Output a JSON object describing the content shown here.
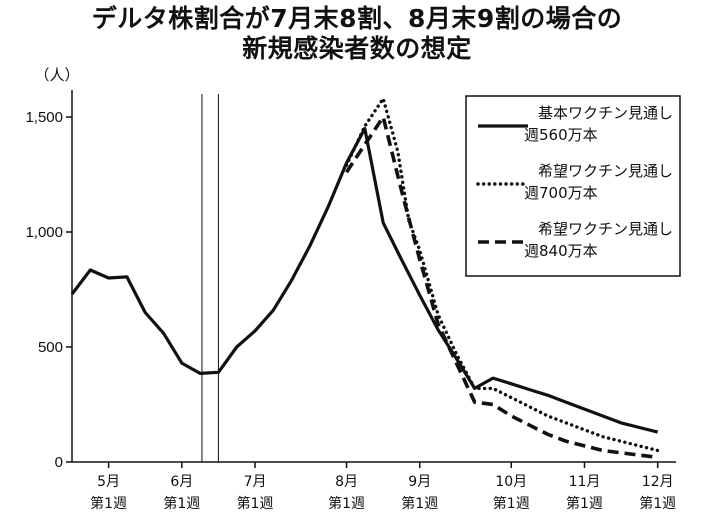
{
  "title": {
    "line1": "デルタ株割合が7月末8割、8月末9割の場合の",
    "line2": "新規感染者数の想定"
  },
  "chart_data": {
    "type": "line",
    "ylabel": "（人）",
    "ylim": [
      0,
      1600
    ],
    "yticks": [
      0,
      500,
      1000,
      1500
    ],
    "ytick_labels": [
      "0",
      "500",
      "1,000",
      "1,500"
    ],
    "xlim": [
      -2,
      31
    ],
    "xticks": [
      {
        "x": 0,
        "label": [
          "5月",
          "第1週"
        ]
      },
      {
        "x": 4,
        "label": [
          "6月",
          "第1週"
        ]
      },
      {
        "x": 8,
        "label": [
          "7月",
          "第1週"
        ]
      },
      {
        "x": 13,
        "label": [
          "8月",
          "第1週"
        ]
      },
      {
        "x": 17,
        "label": [
          "9月",
          "第1週"
        ]
      },
      {
        "x": 22,
        "label": [
          "10月",
          "第1週"
        ]
      },
      {
        "x": 26,
        "label": [
          "11月",
          "第1週"
        ]
      },
      {
        "x": 30,
        "label": [
          "12月",
          "第1週"
        ]
      }
    ],
    "vlines": [
      5.1,
      6
    ],
    "series": [
      {
        "name": "基本ワクチン見通し 週560万本",
        "style": "solid",
        "x": [
          -2,
          -1,
          0,
          1,
          2,
          3,
          4,
          5,
          6,
          7,
          8,
          9,
          10,
          11,
          12,
          13,
          14,
          15,
          16,
          17,
          18,
          19,
          20,
          21,
          22,
          23,
          24,
          25,
          26,
          27,
          28,
          29,
          30
        ],
        "y": [
          730,
          835,
          800,
          805,
          650,
          560,
          430,
          385,
          390,
          500,
          570,
          660,
          790,
          940,
          1110,
          1300,
          1450,
          1040,
          880,
          725,
          575,
          450,
          320,
          365,
          340,
          315,
          290,
          260,
          230,
          200,
          170,
          150,
          130
        ]
      },
      {
        "name": "希望ワクチン見通し 週700万本",
        "style": "dotted",
        "x": [
          13,
          14,
          15,
          15.8,
          16.4,
          17,
          18,
          19,
          20,
          21,
          22,
          23,
          24,
          25,
          26,
          27,
          28,
          29,
          30
        ],
        "y": [
          1290,
          1460,
          1580,
          1350,
          1050,
          920,
          640,
          470,
          320,
          320,
          280,
          240,
          200,
          170,
          140,
          110,
          90,
          70,
          50
        ]
      },
      {
        "name": "希望ワクチン見通し 週840万本",
        "style": "dashed",
        "x": [
          13,
          14,
          15,
          16,
          16.6,
          17,
          18,
          19,
          20,
          21,
          22,
          23,
          24,
          25,
          26,
          27,
          28,
          29,
          30
        ],
        "y": [
          1260,
          1380,
          1500,
          1180,
          1000,
          880,
          600,
          430,
          260,
          250,
          200,
          160,
          120,
          90,
          70,
          50,
          40,
          30,
          20
        ]
      }
    ],
    "legend": {
      "placement": "top-right",
      "entries": [
        {
          "line1": "基本ワクチン見通し",
          "line2": "週560万本",
          "style": "solid"
        },
        {
          "line1": "希望ワクチン見通し",
          "line2": "週700万本",
          "style": "dotted"
        },
        {
          "line1": "希望ワクチン見通し",
          "line2": "週840万本",
          "style": "dashed"
        }
      ]
    }
  }
}
